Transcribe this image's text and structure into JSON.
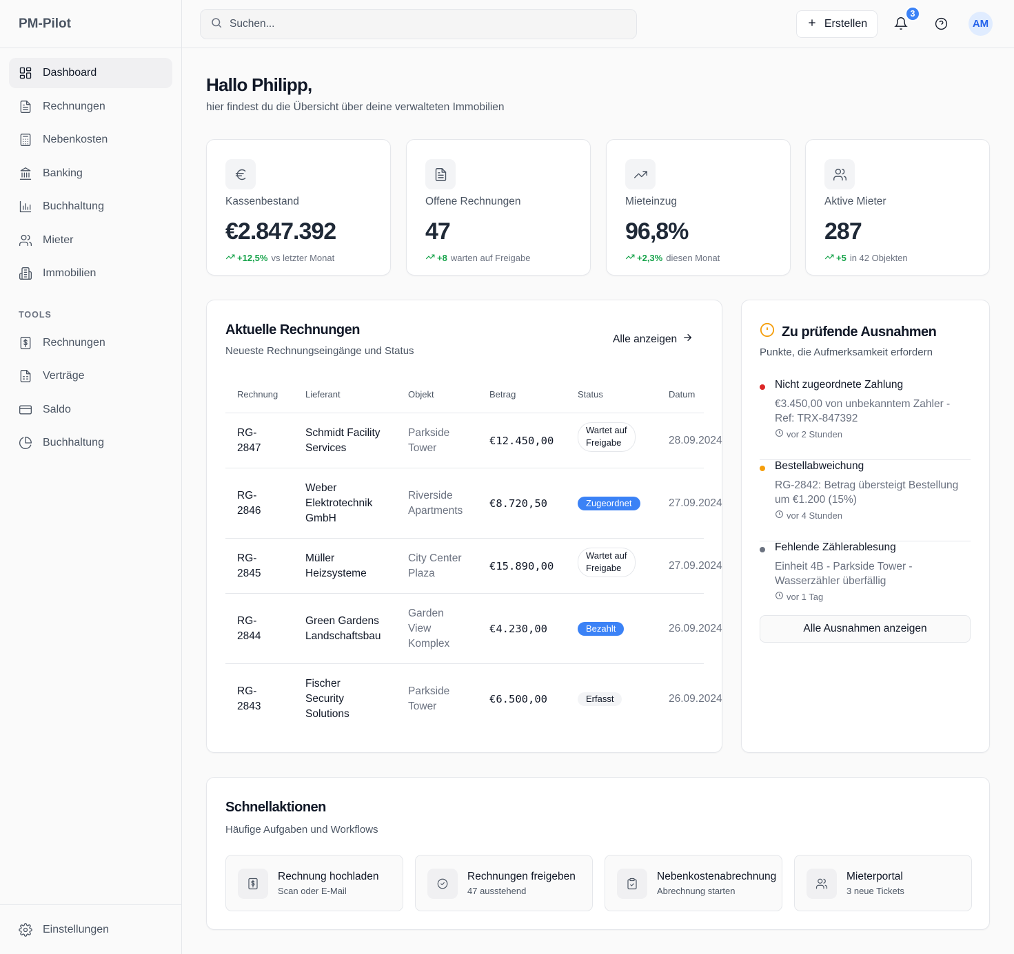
{
  "app": {
    "brand": "PM-Pilot"
  },
  "sidebar": {
    "items": [
      {
        "label": "Dashboard",
        "icon": "dashboard-icon",
        "active": true
      },
      {
        "label": "Rechnungen",
        "icon": "file-icon"
      },
      {
        "label": "Nebenkosten",
        "icon": "calculator-icon"
      },
      {
        "label": "Banking",
        "icon": "bank-icon"
      },
      {
        "label": "Buchhaltung",
        "icon": "bar-chart-icon"
      },
      {
        "label": "Mieter",
        "icon": "users-icon"
      },
      {
        "label": "Immobilien",
        "icon": "building-icon"
      }
    ],
    "tools_label": "TOOLS",
    "tools": [
      {
        "label": "Rechnungen",
        "icon": "receipt-icon"
      },
      {
        "label": "Verträge",
        "icon": "contract-icon"
      },
      {
        "label": "Saldo",
        "icon": "card-icon"
      },
      {
        "label": "Buchhaltung",
        "icon": "pie-chart-icon"
      }
    ],
    "settings_label": "Einstellungen"
  },
  "header": {
    "search_placeholder": "Suchen...",
    "create_label": "Erstellen",
    "notifications_count": "3",
    "avatar_initials": "AM"
  },
  "greeting": {
    "title": "Hallo Philipp,",
    "subtitle": "hier findest du die Übersicht über deine verwalteten Immobilien"
  },
  "stats": [
    {
      "label": "Kassenbestand",
      "value": "€2.847.392",
      "delta": "+12,5%",
      "delta_text": "vs letzter Monat",
      "icon": "euro-icon"
    },
    {
      "label": "Offene Rechnungen",
      "value": "47",
      "delta": "+8",
      "delta_text": "warten auf Freigabe",
      "icon": "document-icon"
    },
    {
      "label": "Mieteinzug",
      "value": "96,8%",
      "delta": "+2,3%",
      "delta_text": "diesen Monat",
      "icon": "trending-up-icon"
    },
    {
      "label": "Aktive Mieter",
      "value": "287",
      "delta": "+5",
      "delta_text": "in 42 Objekten",
      "icon": "users-icon"
    }
  ],
  "invoices": {
    "title": "Aktuelle Rechnungen",
    "subtitle": "Neueste Rechnungseingänge und Status",
    "view_all": "Alle anzeigen",
    "columns": [
      "Rechnung",
      "Lieferant",
      "Objekt",
      "Betrag",
      "Status",
      "Datum"
    ],
    "rows": [
      {
        "id": "RG-\n2847",
        "supplier": "Schmidt Facility\nServices",
        "object": "Parkside\nTower",
        "amount": "€12.450,00",
        "status": "Wartet auf\nFreigabe",
        "status_type": "outline",
        "date": "28.09.2024"
      },
      {
        "id": "RG-\n2846",
        "supplier": "Weber\nElektrotechnik\nGmbH",
        "object": "Riverside\nApartments",
        "amount": "€8.720,50",
        "status": "Zugeordnet",
        "status_type": "blue",
        "date": "27.09.2024"
      },
      {
        "id": "RG-\n2845",
        "supplier": "Müller\nHeizsysteme",
        "object": "City Center\nPlaza",
        "amount": "€15.890,00",
        "status": "Wartet auf\nFreigabe",
        "status_type": "outline",
        "date": "27.09.2024"
      },
      {
        "id": "RG-\n2844",
        "supplier": "Green Gardens\nLandschaftsbau",
        "object": "Garden\nView\nKomplex",
        "amount": "€4.230,00",
        "status": "Bezahlt",
        "status_type": "blue",
        "date": "26.09.2024"
      },
      {
        "id": "RG-\n2843",
        "supplier": "Fischer\nSecurity\nSolutions",
        "object": "Parkside\nTower",
        "amount": "€6.500,00",
        "status": "Erfasst",
        "status_type": "gray",
        "date": "26.09.2024"
      }
    ]
  },
  "exceptions": {
    "title": "Zu prüfende Ausnahmen",
    "subtitle": "Punkte, die Aufmerksamkeit erfordern",
    "items": [
      {
        "title": "Nicht zugeordnete Zahlung",
        "desc": "€3.450,00 von unbekanntem Zahler - Ref: TRX-847392",
        "time": "vor 2 Stunden",
        "color": "#dc2626"
      },
      {
        "title": "Bestellabweichung",
        "desc": "RG-2842: Betrag übersteigt Bestellung um €1.200 (15%)",
        "time": "vor 4 Stunden",
        "color": "#f59e0b"
      },
      {
        "title": "Fehlende Zählerablesung",
        "desc": "Einheit 4B - Parkside Tower - Wasserzähler überfällig",
        "time": "vor 1 Tag",
        "color": "#6b7280"
      }
    ],
    "view_all": "Alle Ausnahmen anzeigen"
  },
  "quick_actions": {
    "title": "Schnellaktionen",
    "subtitle": "Häufige Aufgaben und Workflows",
    "items": [
      {
        "title": "Rechnung hochladen",
        "subtitle": "Scan oder E-Mail",
        "icon": "upload-receipt-icon"
      },
      {
        "title": "Rechnungen freigeben",
        "subtitle": "47 ausstehend",
        "icon": "check-circle-icon"
      },
      {
        "title": "Nebenkostenabrechnung",
        "subtitle": "Abrechnung starten",
        "icon": "clipboard-icon"
      },
      {
        "title": "Mieterportal",
        "subtitle": "3 neue Tickets",
        "icon": "users-icon"
      }
    ]
  }
}
